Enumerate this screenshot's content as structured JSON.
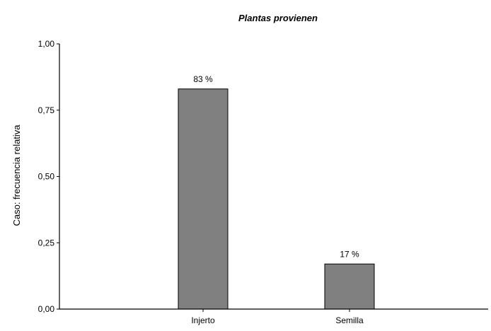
{
  "chart_data": {
    "type": "bar",
    "title": "Plantas provienen",
    "xlabel": "",
    "ylabel": "Caso: frecuencia relativa",
    "categories": [
      "Injerto",
      "Semilla"
    ],
    "values": [
      0.83,
      0.17
    ],
    "data_labels": [
      "83 %",
      "17 %"
    ],
    "ylim": [
      0,
      1
    ],
    "yticks": [
      0,
      0.25,
      0.5,
      0.75,
      1
    ],
    "ytick_labels": [
      "0,00",
      "0,25",
      "0,50",
      "0,75",
      "1,00"
    ],
    "grid": false,
    "legend": "none",
    "colors": {
      "bar_fill": "#808080",
      "bar_stroke": "#000000",
      "axis": "#000000"
    }
  }
}
